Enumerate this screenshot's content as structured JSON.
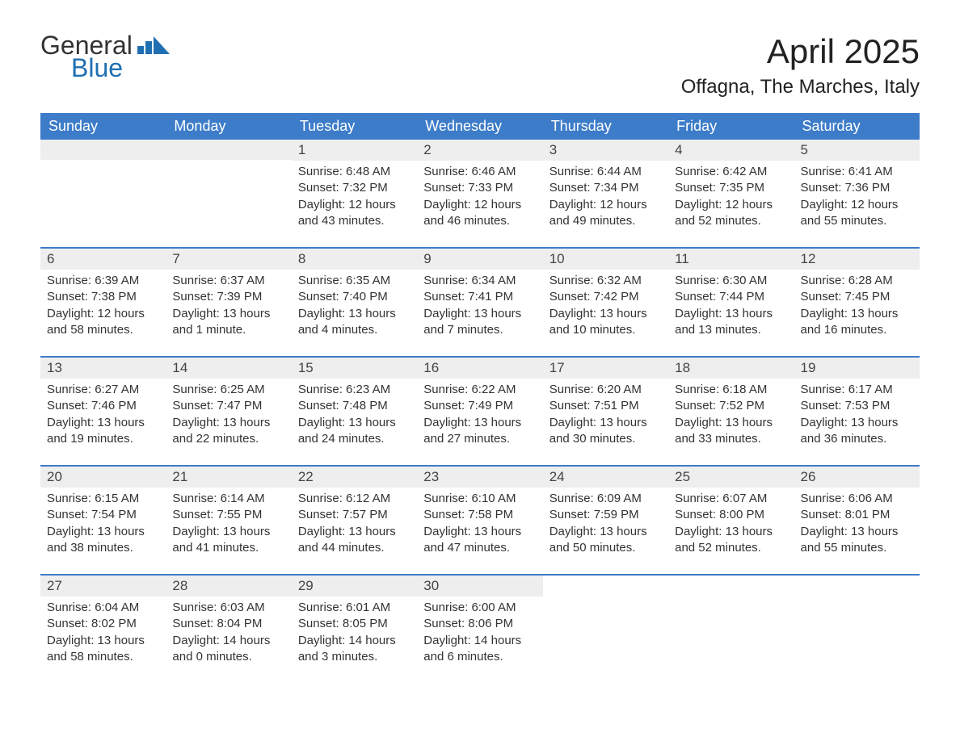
{
  "logo": {
    "text_top": "General",
    "text_bottom": "Blue",
    "color_top": "#333333",
    "color_bottom": "#1f6fb2",
    "icon_color": "#1f6fb2"
  },
  "title": "April 2025",
  "location": "Offagna, The Marches, Italy",
  "colors": {
    "header_bg": "#3d7cc9",
    "header_text": "#ffffff",
    "daynum_bg": "#eeeeee",
    "week_divider": "#3d7cc9",
    "page_bg": "#ffffff",
    "body_text": "#333333"
  },
  "fonts": {
    "title_size_pt": 32,
    "location_size_pt": 18,
    "weekday_size_pt": 13,
    "daynum_size_pt": 13,
    "body_size_pt": 11
  },
  "weekdays": [
    "Sunday",
    "Monday",
    "Tuesday",
    "Wednesday",
    "Thursday",
    "Friday",
    "Saturday"
  ],
  "weeks": [
    [
      {
        "empty": true
      },
      {
        "empty": true
      },
      {
        "num": "1",
        "sunrise": "Sunrise: 6:48 AM",
        "sunset": "Sunset: 7:32 PM",
        "daylight": "Daylight: 12 hours and 43 minutes."
      },
      {
        "num": "2",
        "sunrise": "Sunrise: 6:46 AM",
        "sunset": "Sunset: 7:33 PM",
        "daylight": "Daylight: 12 hours and 46 minutes."
      },
      {
        "num": "3",
        "sunrise": "Sunrise: 6:44 AM",
        "sunset": "Sunset: 7:34 PM",
        "daylight": "Daylight: 12 hours and 49 minutes."
      },
      {
        "num": "4",
        "sunrise": "Sunrise: 6:42 AM",
        "sunset": "Sunset: 7:35 PM",
        "daylight": "Daylight: 12 hours and 52 minutes."
      },
      {
        "num": "5",
        "sunrise": "Sunrise: 6:41 AM",
        "sunset": "Sunset: 7:36 PM",
        "daylight": "Daylight: 12 hours and 55 minutes."
      }
    ],
    [
      {
        "num": "6",
        "sunrise": "Sunrise: 6:39 AM",
        "sunset": "Sunset: 7:38 PM",
        "daylight": "Daylight: 12 hours and 58 minutes."
      },
      {
        "num": "7",
        "sunrise": "Sunrise: 6:37 AM",
        "sunset": "Sunset: 7:39 PM",
        "daylight": "Daylight: 13 hours and 1 minute."
      },
      {
        "num": "8",
        "sunrise": "Sunrise: 6:35 AM",
        "sunset": "Sunset: 7:40 PM",
        "daylight": "Daylight: 13 hours and 4 minutes."
      },
      {
        "num": "9",
        "sunrise": "Sunrise: 6:34 AM",
        "sunset": "Sunset: 7:41 PM",
        "daylight": "Daylight: 13 hours and 7 minutes."
      },
      {
        "num": "10",
        "sunrise": "Sunrise: 6:32 AM",
        "sunset": "Sunset: 7:42 PM",
        "daylight": "Daylight: 13 hours and 10 minutes."
      },
      {
        "num": "11",
        "sunrise": "Sunrise: 6:30 AM",
        "sunset": "Sunset: 7:44 PM",
        "daylight": "Daylight: 13 hours and 13 minutes."
      },
      {
        "num": "12",
        "sunrise": "Sunrise: 6:28 AM",
        "sunset": "Sunset: 7:45 PM",
        "daylight": "Daylight: 13 hours and 16 minutes."
      }
    ],
    [
      {
        "num": "13",
        "sunrise": "Sunrise: 6:27 AM",
        "sunset": "Sunset: 7:46 PM",
        "daylight": "Daylight: 13 hours and 19 minutes."
      },
      {
        "num": "14",
        "sunrise": "Sunrise: 6:25 AM",
        "sunset": "Sunset: 7:47 PM",
        "daylight": "Daylight: 13 hours and 22 minutes."
      },
      {
        "num": "15",
        "sunrise": "Sunrise: 6:23 AM",
        "sunset": "Sunset: 7:48 PM",
        "daylight": "Daylight: 13 hours and 24 minutes."
      },
      {
        "num": "16",
        "sunrise": "Sunrise: 6:22 AM",
        "sunset": "Sunset: 7:49 PM",
        "daylight": "Daylight: 13 hours and 27 minutes."
      },
      {
        "num": "17",
        "sunrise": "Sunrise: 6:20 AM",
        "sunset": "Sunset: 7:51 PM",
        "daylight": "Daylight: 13 hours and 30 minutes."
      },
      {
        "num": "18",
        "sunrise": "Sunrise: 6:18 AM",
        "sunset": "Sunset: 7:52 PM",
        "daylight": "Daylight: 13 hours and 33 minutes."
      },
      {
        "num": "19",
        "sunrise": "Sunrise: 6:17 AM",
        "sunset": "Sunset: 7:53 PM",
        "daylight": "Daylight: 13 hours and 36 minutes."
      }
    ],
    [
      {
        "num": "20",
        "sunrise": "Sunrise: 6:15 AM",
        "sunset": "Sunset: 7:54 PM",
        "daylight": "Daylight: 13 hours and 38 minutes."
      },
      {
        "num": "21",
        "sunrise": "Sunrise: 6:14 AM",
        "sunset": "Sunset: 7:55 PM",
        "daylight": "Daylight: 13 hours and 41 minutes."
      },
      {
        "num": "22",
        "sunrise": "Sunrise: 6:12 AM",
        "sunset": "Sunset: 7:57 PM",
        "daylight": "Daylight: 13 hours and 44 minutes."
      },
      {
        "num": "23",
        "sunrise": "Sunrise: 6:10 AM",
        "sunset": "Sunset: 7:58 PM",
        "daylight": "Daylight: 13 hours and 47 minutes."
      },
      {
        "num": "24",
        "sunrise": "Sunrise: 6:09 AM",
        "sunset": "Sunset: 7:59 PM",
        "daylight": "Daylight: 13 hours and 50 minutes."
      },
      {
        "num": "25",
        "sunrise": "Sunrise: 6:07 AM",
        "sunset": "Sunset: 8:00 PM",
        "daylight": "Daylight: 13 hours and 52 minutes."
      },
      {
        "num": "26",
        "sunrise": "Sunrise: 6:06 AM",
        "sunset": "Sunset: 8:01 PM",
        "daylight": "Daylight: 13 hours and 55 minutes."
      }
    ],
    [
      {
        "num": "27",
        "sunrise": "Sunrise: 6:04 AM",
        "sunset": "Sunset: 8:02 PM",
        "daylight": "Daylight: 13 hours and 58 minutes."
      },
      {
        "num": "28",
        "sunrise": "Sunrise: 6:03 AM",
        "sunset": "Sunset: 8:04 PM",
        "daylight": "Daylight: 14 hours and 0 minutes."
      },
      {
        "num": "29",
        "sunrise": "Sunrise: 6:01 AM",
        "sunset": "Sunset: 8:05 PM",
        "daylight": "Daylight: 14 hours and 3 minutes."
      },
      {
        "num": "30",
        "sunrise": "Sunrise: 6:00 AM",
        "sunset": "Sunset: 8:06 PM",
        "daylight": "Daylight: 14 hours and 6 minutes."
      },
      {
        "empty": true,
        "nobar": true
      },
      {
        "empty": true,
        "nobar": true
      },
      {
        "empty": true,
        "nobar": true
      }
    ]
  ]
}
